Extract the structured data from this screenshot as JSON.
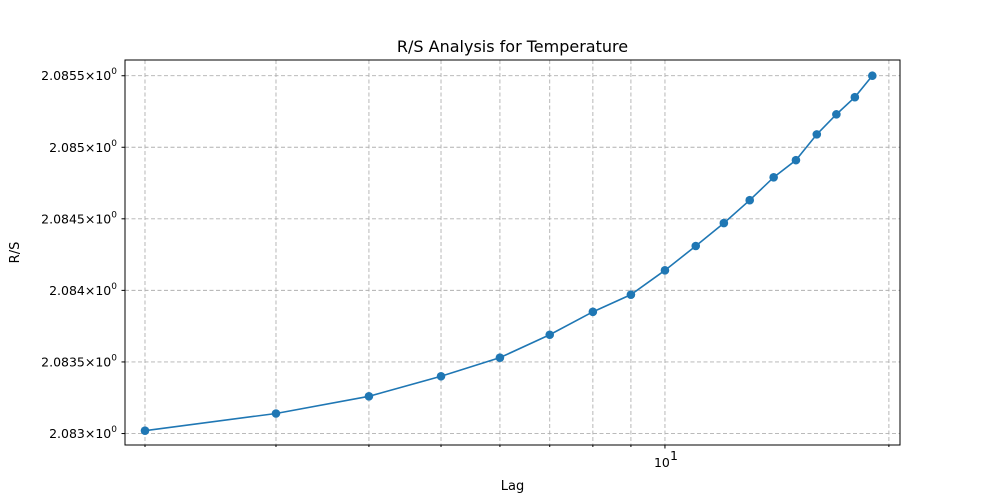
{
  "chart_data": {
    "type": "line",
    "title": "R/S Analysis for Temperature",
    "xlabel": "Lag",
    "ylabel": "R/S",
    "x_scale": "log",
    "y_scale": "log",
    "grid": true,
    "color": "#1f77b4",
    "xlim": [
      1.88,
      20.7
    ],
    "ylim": [
      2.08292,
      2.08561
    ],
    "x_major_ticks": [
      {
        "value": 10,
        "base": "10",
        "exp": "1"
      }
    ],
    "x_minor_ticks": [
      2,
      3,
      4,
      5,
      6,
      7,
      8,
      9,
      20
    ],
    "y_ticks": [
      {
        "value": 2.083,
        "mant": "2.083",
        "base": "10",
        "exp": "0"
      },
      {
        "value": 2.0835,
        "mant": "2.0835",
        "base": "10",
        "exp": "0"
      },
      {
        "value": 2.084,
        "mant": "2.084",
        "base": "10",
        "exp": "0"
      },
      {
        "value": 2.0845,
        "mant": "2.0845",
        "base": "10",
        "exp": "0"
      },
      {
        "value": 2.085,
        "mant": "2.085",
        "base": "10",
        "exp": "0"
      },
      {
        "value": 2.0855,
        "mant": "2.0855",
        "base": "10",
        "exp": "0"
      }
    ],
    "series": [
      {
        "x": [
          2,
          3,
          4,
          5,
          6,
          7,
          8,
          9,
          10,
          11,
          12,
          13,
          14,
          15,
          16,
          17,
          18,
          19
        ],
        "y": [
          2.08302,
          2.08314,
          2.08326,
          2.0834,
          2.08353,
          2.08369,
          2.08385,
          2.08397,
          2.08414,
          2.08431,
          2.08447,
          2.08463,
          2.08479,
          2.08491,
          2.08509,
          2.08523,
          2.08535,
          2.0855
        ]
      }
    ]
  }
}
